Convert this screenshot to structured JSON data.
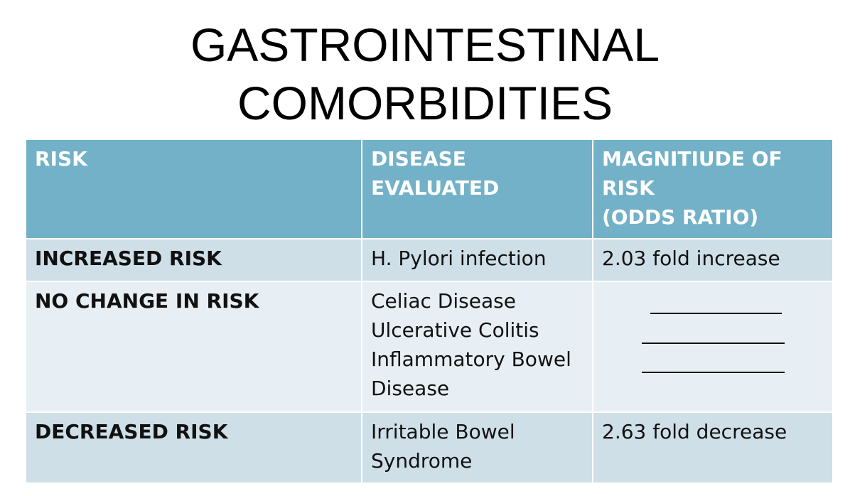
{
  "title": {
    "line1": "GASTROINTESTINAL",
    "line2": "COMORBIDITIES"
  },
  "table": {
    "headers": [
      "RISK",
      "DISEASE EVALUATED",
      "MAGNITIUDE OF RISK (ODDS RATIO)"
    ],
    "header_lines": {
      "disease": [
        "DISEASE",
        "EVALUATED"
      ],
      "magnitude": [
        "MAGNITIUDE OF",
        "RISK",
        "(ODDS RATIO)"
      ]
    },
    "rows": [
      {
        "risk": "INCREASED RISK",
        "diseases": [
          "H.  Pylori infection"
        ],
        "magnitude": "2.03 fold increase"
      },
      {
        "risk": "NO  CHANGE IN  RISK",
        "diseases": [
          "Celiac Disease",
          "Ulcerative Colitis",
          "Inflammatory  Bowel",
          "Disease"
        ],
        "magnitude": ""
      },
      {
        "risk": "DECREASED RISK",
        "diseases": [
          "Irritable Bowel",
          "Syndrome"
        ],
        "magnitude": "2.63 fold decrease"
      }
    ],
    "colors": {
      "header_bg": "#72b1c7",
      "row_dark_bg": "#cfdfe8",
      "row_light_bg": "#e7eff4",
      "header_text": "#ffffff",
      "body_text": "#111111"
    }
  }
}
